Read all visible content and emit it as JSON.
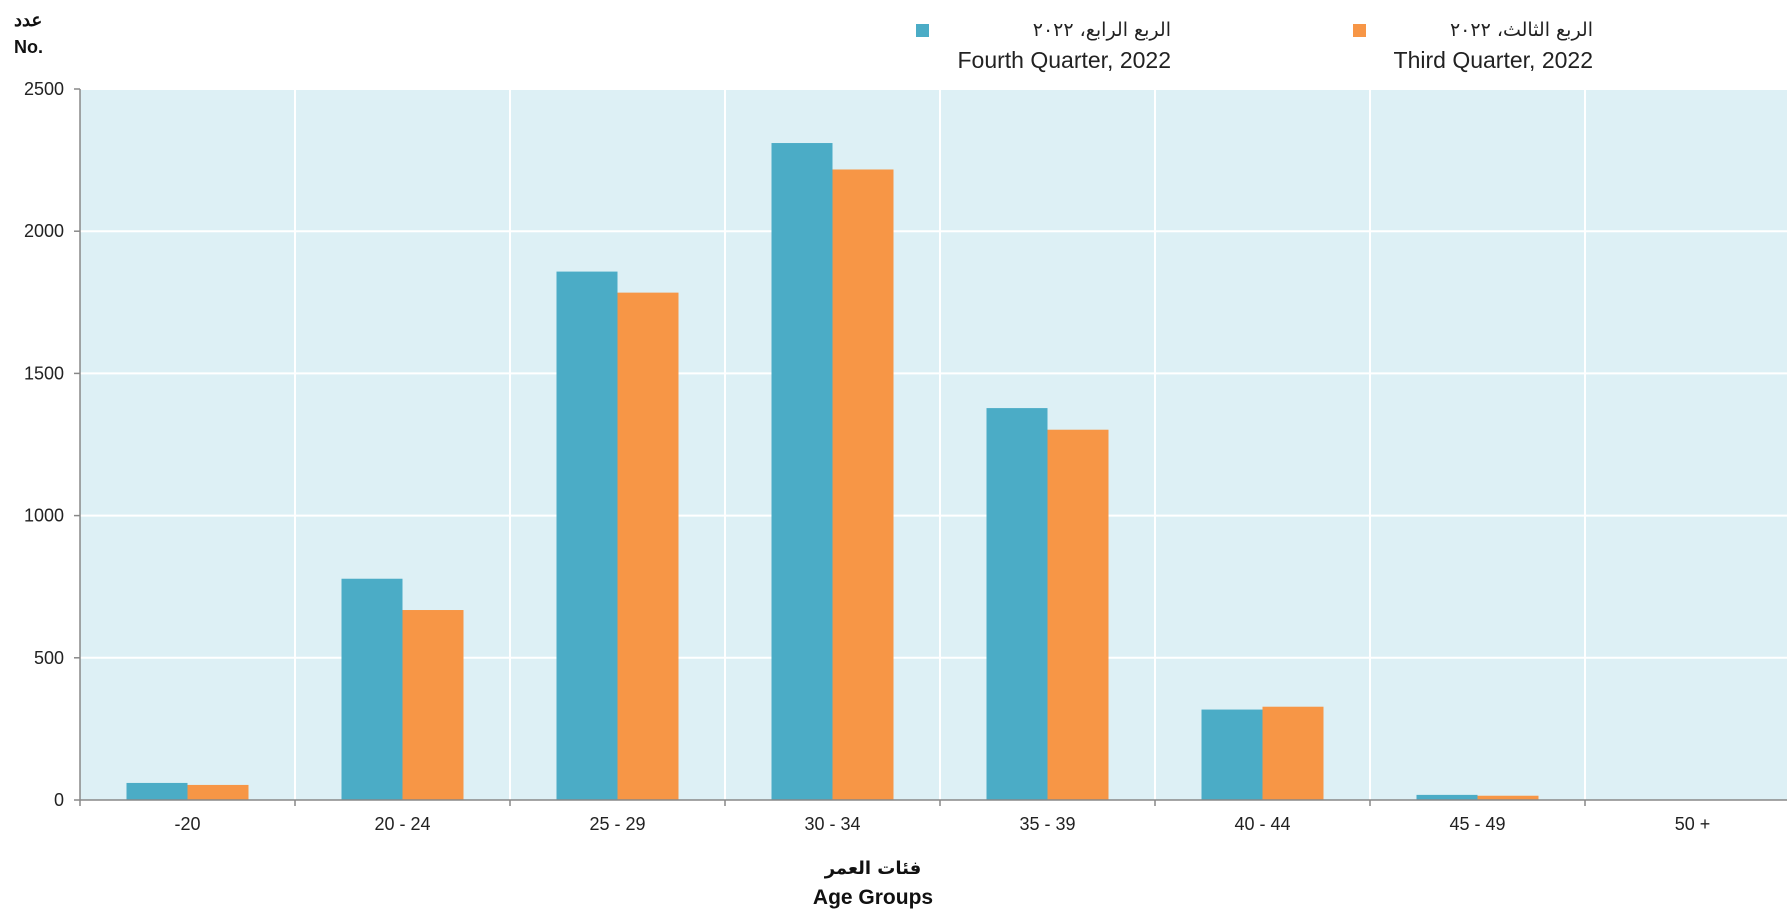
{
  "chart_data": {
    "type": "bar",
    "ylabel_ar": "عدد",
    "ylabel_en": "No.",
    "xlabel_ar": "فئات العمر",
    "xlabel_en": "Age Groups",
    "ylim": [
      0,
      2500
    ],
    "yticks": [
      "0",
      "500",
      "1000",
      "1500",
      "2000",
      "2500"
    ],
    "categories": [
      "-20",
      "20 - 24",
      "25 - 29",
      "30 - 34",
      "35 - 39",
      "40 - 44",
      "45 - 49",
      "50 +"
    ],
    "grid": true,
    "legend_position": "top-right",
    "series": [
      {
        "name_ar": "الربع الرابع، ٢٠٢٢",
        "name_en": "Fourth Quarter, 2022",
        "color": "#4bacc6",
        "values": [
          60,
          778,
          1858,
          2310,
          1378,
          318,
          18,
          0
        ]
      },
      {
        "name_ar": "الربع الثالث، ٢٠٢٢",
        "name_en": "Third Quarter, 2022",
        "color": "#f79646",
        "values": [
          53,
          668,
          1784,
          2217,
          1302,
          328,
          15,
          0
        ]
      }
    ],
    "plot_background": "#ddf0f5",
    "grid_color": "#ffffff"
  }
}
